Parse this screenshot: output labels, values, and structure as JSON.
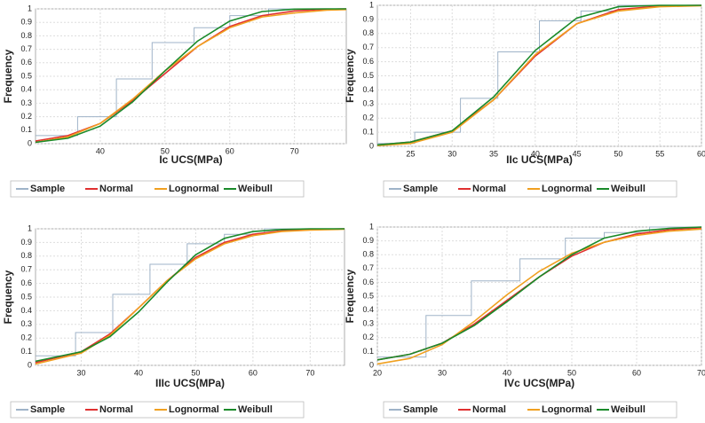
{
  "chart_data": [
    {
      "type": "line",
      "xlabel": "Ic UCS(MPa)",
      "ylabel": "Frequency",
      "xlim": [
        30,
        78
      ],
      "xticks": [
        40,
        50,
        60,
        70
      ],
      "ylim": [
        0,
        1
      ],
      "yticks": [
        0,
        0.1,
        0.2,
        0.3,
        0.4,
        0.5,
        0.6,
        0.7,
        0.8,
        0.9,
        1
      ],
      "grid": true,
      "x": [
        30,
        35,
        40,
        45,
        50,
        55,
        60,
        65,
        70,
        75,
        78
      ],
      "series": [
        {
          "name": "Sample",
          "color": "#9fb3c8",
          "x": [
            30,
            36.5,
            36.5,
            42.5,
            42.5,
            48,
            48,
            54.5,
            54.5,
            60,
            60,
            66,
            66,
            78
          ],
          "values": [
            0.06,
            0.06,
            0.2,
            0.2,
            0.48,
            0.48,
            0.75,
            0.75,
            0.86,
            0.86,
            0.95,
            0.95,
            1,
            1
          ]
        },
        {
          "name": "Normal",
          "color": "#e03030",
          "values": [
            0.02,
            0.06,
            0.15,
            0.32,
            0.52,
            0.72,
            0.87,
            0.95,
            0.985,
            0.997,
            1
          ]
        },
        {
          "name": "Lognormal",
          "color": "#f0a020",
          "values": [
            0.01,
            0.05,
            0.15,
            0.33,
            0.54,
            0.72,
            0.86,
            0.94,
            0.97,
            0.99,
            0.995
          ]
        },
        {
          "name": "Weibull",
          "color": "#1a8a2a",
          "values": [
            0.01,
            0.04,
            0.13,
            0.31,
            0.54,
            0.76,
            0.91,
            0.98,
            0.998,
            1,
            1
          ]
        }
      ]
    },
    {
      "type": "line",
      "xlabel": "IIc UCS(MPa)",
      "ylabel": "Frequency",
      "xlim": [
        21,
        60
      ],
      "xticks": [
        25,
        30,
        35,
        40,
        45,
        50,
        55,
        60
      ],
      "ylim": [
        0,
        1
      ],
      "yticks": [
        0,
        0.1,
        0.2,
        0.3,
        0.4,
        0.5,
        0.6,
        0.7,
        0.8,
        0.9,
        1
      ],
      "grid": true,
      "x": [
        21,
        25,
        30,
        35,
        40,
        45,
        50,
        55,
        60
      ],
      "series": [
        {
          "name": "Sample",
          "color": "#9fb3c8",
          "x": [
            21,
            25.5,
            25.5,
            31,
            31,
            35.5,
            35.5,
            40.5,
            40.5,
            45.5,
            45.5,
            50,
            50,
            60
          ],
          "values": [
            0.02,
            0.02,
            0.1,
            0.1,
            0.34,
            0.34,
            0.67,
            0.67,
            0.89,
            0.89,
            0.96,
            0.96,
            1,
            1
          ]
        },
        {
          "name": "Normal",
          "color": "#e03030",
          "values": [
            0.01,
            0.03,
            0.11,
            0.33,
            0.64,
            0.87,
            0.97,
            0.995,
            1
          ]
        },
        {
          "name": "Lognormal",
          "color": "#f0a020",
          "values": [
            0.005,
            0.02,
            0.1,
            0.33,
            0.65,
            0.87,
            0.96,
            0.99,
            0.997
          ]
        },
        {
          "name": "Weibull",
          "color": "#1a8a2a",
          "values": [
            0.01,
            0.03,
            0.11,
            0.35,
            0.68,
            0.91,
            0.99,
            1,
            1
          ]
        }
      ]
    },
    {
      "type": "line",
      "xlabel": "IIIc UCS(MPa)",
      "ylabel": "Frequency",
      "xlim": [
        22,
        76
      ],
      "xticks": [
        30,
        40,
        50,
        60,
        70
      ],
      "ylim": [
        0,
        1
      ],
      "yticks": [
        0,
        0.1,
        0.2,
        0.3,
        0.4,
        0.5,
        0.6,
        0.7,
        0.8,
        0.9,
        1
      ],
      "grid": true,
      "x": [
        22,
        30,
        35,
        40,
        45,
        50,
        55,
        60,
        65,
        70,
        76
      ],
      "series": [
        {
          "name": "Sample",
          "color": "#9fb3c8",
          "x": [
            22,
            29,
            29,
            35.5,
            35.5,
            42,
            42,
            48.5,
            48.5,
            55,
            55,
            62,
            62,
            76
          ],
          "values": [
            0.07,
            0.07,
            0.24,
            0.24,
            0.52,
            0.52,
            0.74,
            0.74,
            0.89,
            0.89,
            0.96,
            0.96,
            1,
            1
          ]
        },
        {
          "name": "Normal",
          "color": "#e03030",
          "values": [
            0.02,
            0.1,
            0.23,
            0.42,
            0.62,
            0.79,
            0.9,
            0.96,
            0.985,
            0.995,
            1
          ]
        },
        {
          "name": "Lognormal",
          "color": "#f0a020",
          "values": [
            0.01,
            0.09,
            0.22,
            0.42,
            0.62,
            0.78,
            0.89,
            0.95,
            0.98,
            0.99,
            0.997
          ]
        },
        {
          "name": "Weibull",
          "color": "#1a8a2a",
          "values": [
            0.03,
            0.1,
            0.21,
            0.39,
            0.61,
            0.81,
            0.93,
            0.98,
            0.995,
            1,
            1
          ]
        }
      ]
    },
    {
      "type": "line",
      "xlabel": "IVc UCS(MPa)",
      "ylabel": "Frequency",
      "xlim": [
        20,
        70
      ],
      "xticks": [
        20,
        30,
        40,
        50,
        60,
        70
      ],
      "ylim": [
        0,
        1
      ],
      "yticks": [
        0,
        0.1,
        0.2,
        0.3,
        0.4,
        0.5,
        0.6,
        0.7,
        0.8,
        0.9,
        1
      ],
      "grid": true,
      "x": [
        20,
        25,
        30,
        35,
        40,
        45,
        50,
        55,
        60,
        65,
        70
      ],
      "series": [
        {
          "name": "Sample",
          "color": "#9fb3c8",
          "x": [
            20,
            27.5,
            27.5,
            34.5,
            34.5,
            42,
            42,
            49,
            49,
            55,
            55,
            62,
            62,
            70
          ],
          "values": [
            0.06,
            0.06,
            0.36,
            0.36,
            0.61,
            0.61,
            0.77,
            0.77,
            0.92,
            0.92,
            0.96,
            0.96,
            1,
            1
          ]
        },
        {
          "name": "Normal",
          "color": "#e03030",
          "values": [
            0.04,
            0.08,
            0.16,
            0.3,
            0.47,
            0.64,
            0.79,
            0.89,
            0.95,
            0.98,
            0.995
          ]
        },
        {
          "name": "Lognormal",
          "color": "#f0a020",
          "values": [
            0.01,
            0.05,
            0.15,
            0.32,
            0.51,
            0.68,
            0.81,
            0.89,
            0.94,
            0.97,
            0.985
          ]
        },
        {
          "name": "Weibull",
          "color": "#1a8a2a",
          "values": [
            0.04,
            0.08,
            0.16,
            0.29,
            0.46,
            0.64,
            0.8,
            0.92,
            0.97,
            0.99,
            1
          ]
        }
      ]
    }
  ]
}
